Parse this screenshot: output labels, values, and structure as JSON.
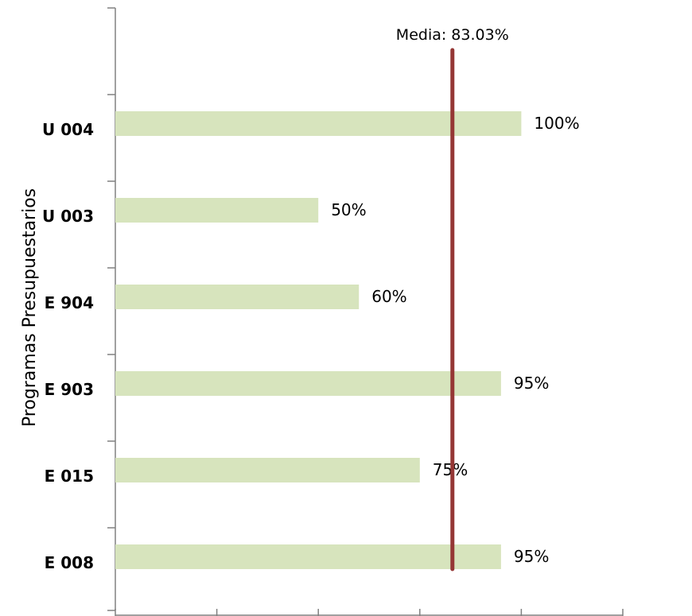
{
  "chart_data": {
    "type": "bar",
    "orientation": "horizontal",
    "ylabel": "Programas Presupuestarios",
    "xlim": [
      0,
      125
    ],
    "categories": [
      "E 008",
      "E 015",
      "E 903",
      "E 904",
      "U 003",
      "U 004"
    ],
    "values": [
      95,
      75,
      95,
      60,
      50,
      100
    ],
    "data_labels": [
      "95%",
      "75%",
      "95%",
      "60%",
      "50%",
      "100%"
    ],
    "bar_color": "#d7e4bd",
    "reference_line": {
      "label": "Media: 83.03%",
      "value": 83.03,
      "color": "#953735"
    },
    "grid": false,
    "legend": "none"
  }
}
